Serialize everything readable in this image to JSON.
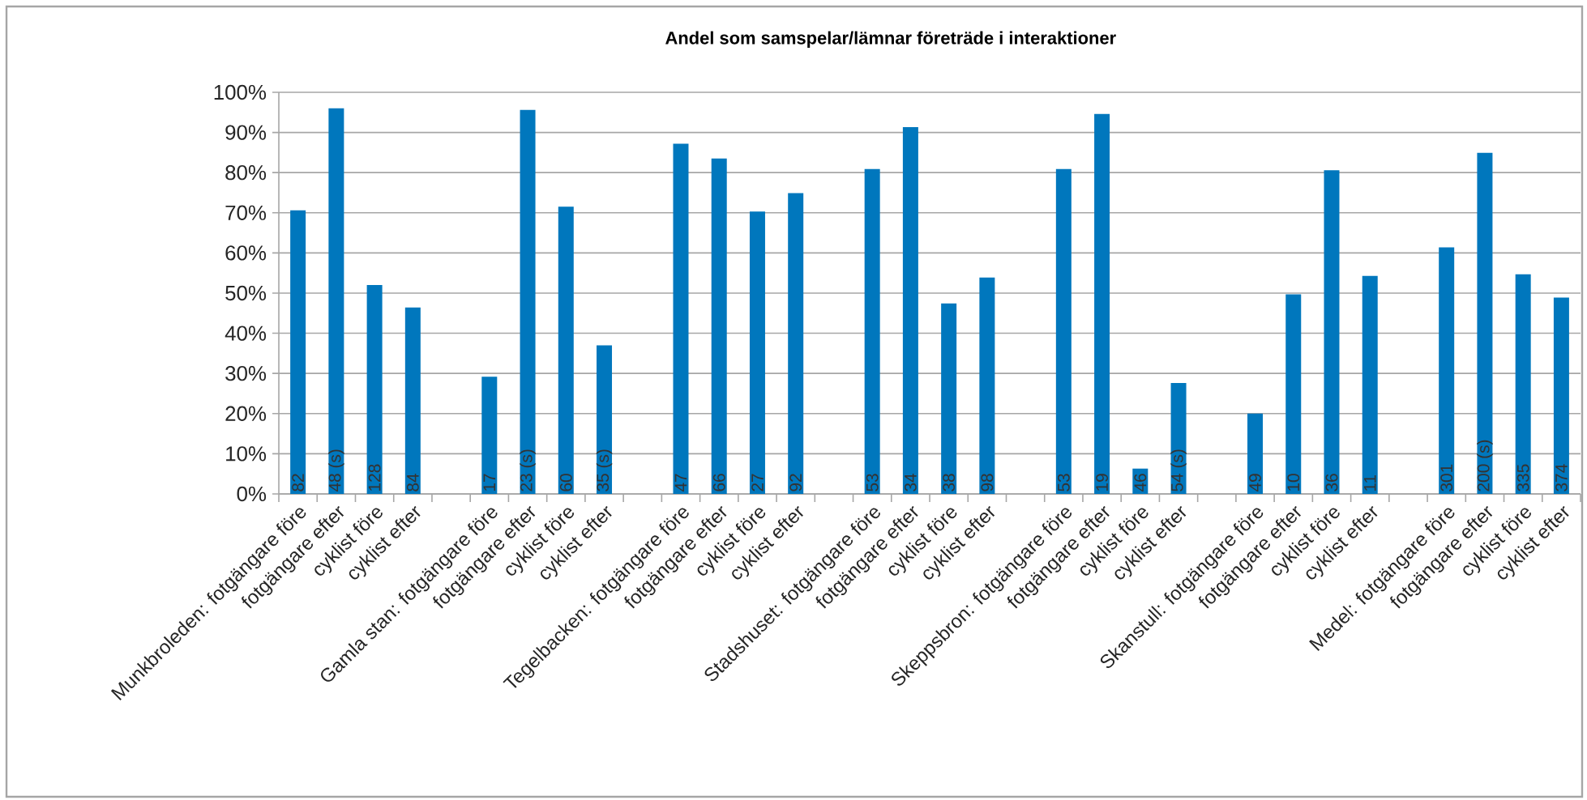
{
  "chart_data": {
    "type": "bar",
    "title": "Andel som samspelar/lämnar företräde i interaktioner",
    "categories": [
      "Munkbroleden:  fotgängare före",
      "fotgängare efter",
      "cyklist före",
      "cyklist efter",
      null,
      "Gamla stan: fotgängare före",
      "fotgängare efter",
      "cyklist före",
      "cyklist efter",
      null,
      "Tegelbacken: fotgängare före",
      "fotgängare efter",
      "cyklist före",
      "cyklist efter",
      null,
      "Stadshuset: fotgängare före",
      "fotgängare efter",
      "cyklist före",
      "cyklist efter",
      null,
      "Skeppsbron: fotgängare före",
      "fotgängare efter",
      "cyklist före",
      "cyklist efter",
      null,
      "Skanstull:  fotgängare före",
      "fotgängare efter",
      "cyklist före",
      "cyklist efter",
      null,
      "Medel: fotgängare före",
      "fotgängare efter",
      "cyklist före",
      "cyklist efter"
    ],
    "values": [
      70.6,
      96.0,
      52.0,
      46.4,
      null,
      29.2,
      95.6,
      71.5,
      37.0,
      null,
      87.2,
      83.5,
      70.3,
      74.9,
      null,
      80.9,
      91.3,
      47.4,
      53.9,
      null,
      80.9,
      94.6,
      6.3,
      27.6,
      null,
      20.0,
      49.7,
      80.6,
      54.3,
      null,
      61.4,
      84.9,
      54.7,
      48.9
    ],
    "annotations": [
      "82",
      "48 (s)",
      "128",
      "84",
      "17",
      "23 (s)",
      "60",
      "35 (s)",
      "47",
      "66",
      "27",
      "92",
      "53",
      "34",
      "38",
      "98",
      "53",
      "19",
      "46",
      "54 (s)",
      "49",
      "10",
      "36",
      "11",
      "301",
      "200 (s)",
      "335",
      "374"
    ],
    "color": "#0077bd",
    "ylim": [
      0,
      100
    ],
    "yticks": [
      {
        "value": 0,
        "label": "0%"
      },
      {
        "value": 10,
        "label": "10%"
      },
      {
        "value": 20,
        "label": "20%"
      },
      {
        "value": 30,
        "label": "30%"
      },
      {
        "value": 40,
        "label": "40%"
      },
      {
        "value": 50,
        "label": "50%"
      },
      {
        "value": 60,
        "label": "60%"
      },
      {
        "value": 70,
        "label": "70%"
      },
      {
        "value": 80,
        "label": "80%"
      },
      {
        "value": 90,
        "label": "90%"
      },
      {
        "value": 100,
        "label": "100%"
      }
    ],
    "grid": "y"
  }
}
